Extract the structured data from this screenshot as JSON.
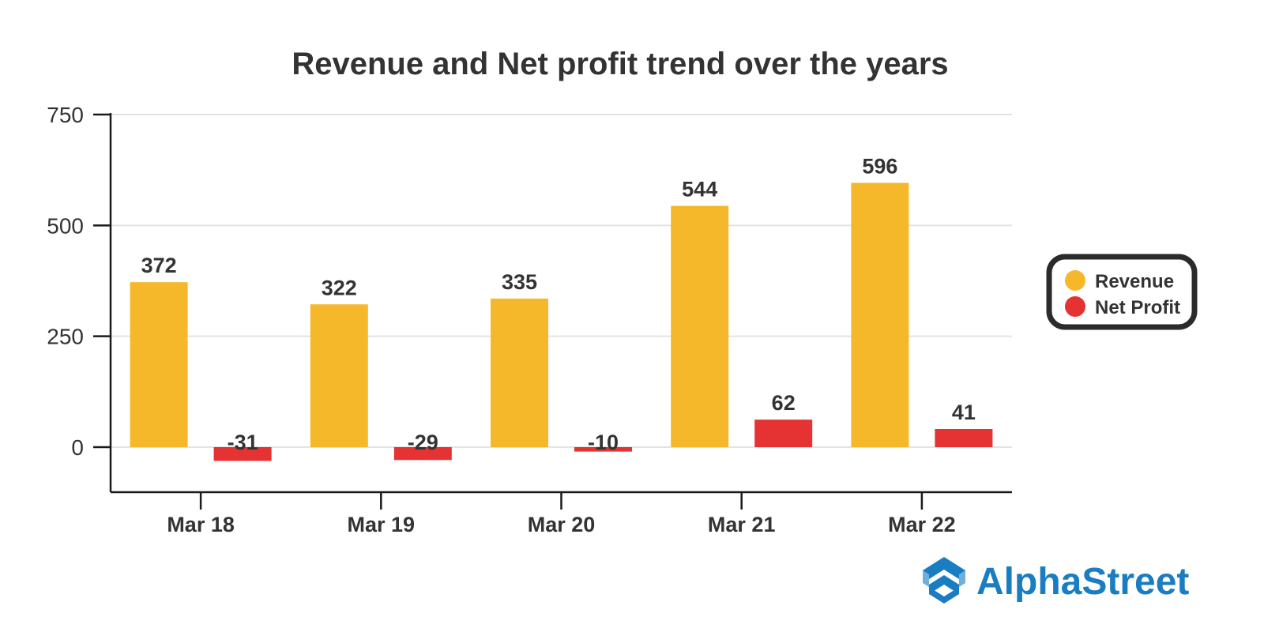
{
  "chart_data": {
    "type": "bar",
    "title": "Revenue and Net profit trend over the years",
    "xlabel": "",
    "ylabel": "",
    "categories": [
      "Mar 18",
      "Mar 19",
      "Mar 20",
      "Mar 21",
      "Mar 22"
    ],
    "series": [
      {
        "name": "Revenue",
        "color": "#f5b82a",
        "values": [
          372,
          322,
          335,
          544,
          596
        ]
      },
      {
        "name": "Net Profit",
        "color": "#e53232",
        "values": [
          -31,
          -29,
          -10,
          62,
          41
        ]
      }
    ],
    "ylim": [
      -100,
      750
    ],
    "yticks": [
      0,
      250,
      500,
      750
    ],
    "ytick_labels": [
      "0",
      "250",
      "500",
      "750"
    ],
    "grid": true,
    "legend_position": "right",
    "data_labels": true
  },
  "branding": {
    "logo_text": "AlphaStreet",
    "logo_color": "#1a7dc2"
  }
}
